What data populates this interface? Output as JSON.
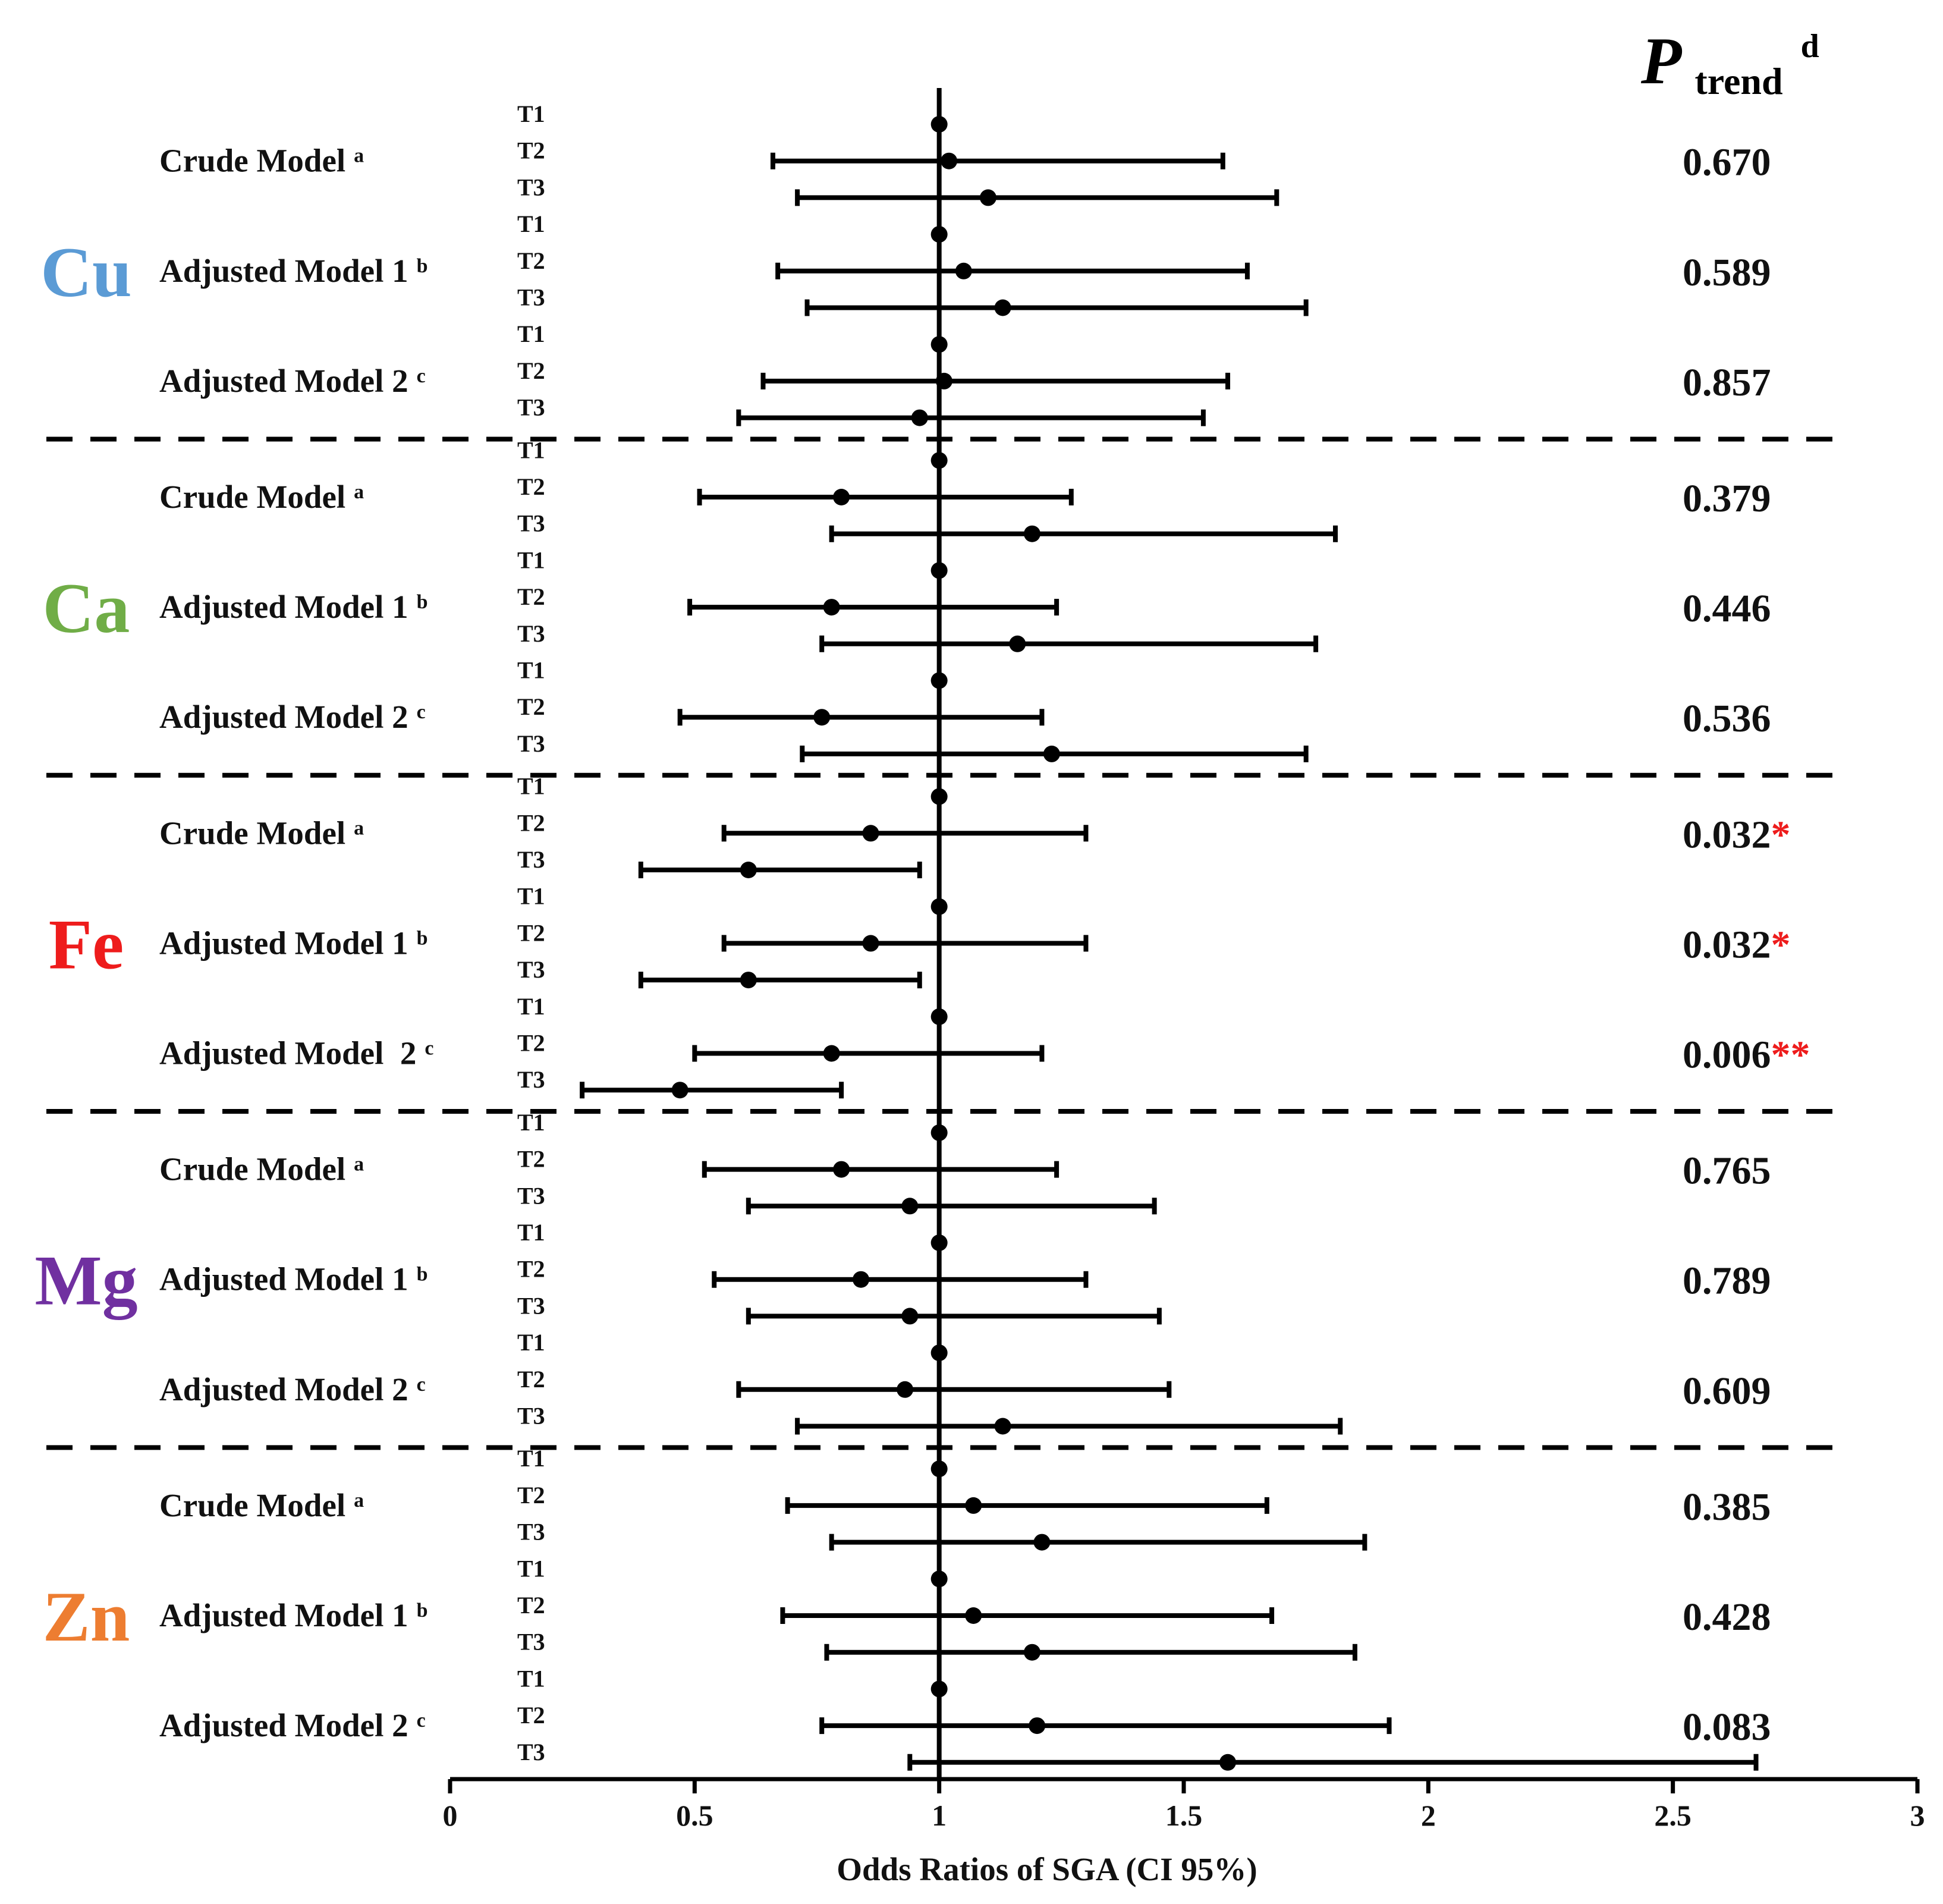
{
  "chart_data": {
    "type": "forest",
    "xlabel": "Odds Ratios of SGA (CI 95%)",
    "xlim": [
      0,
      3
    ],
    "xticks": [
      "0",
      "0.5",
      "1",
      "1.5",
      "2",
      "2.5",
      "3"
    ],
    "reference_line": 1,
    "ptrend_title": {
      "symbol": "P",
      "subscript": "trend",
      "superscript": "d"
    },
    "groups": [
      {
        "element": "Cu",
        "color": "#5b9bd5",
        "models": [
          {
            "label": "Crude Model",
            "sup": "a",
            "ptrend": "0.670",
            "stars": "",
            "tertiles": [
              {
                "name": "T1",
                "or": 1.0,
                "lo": null,
                "hi": null
              },
              {
                "name": "T2",
                "or": 1.02,
                "lo": 0.66,
                "hi": 1.58
              },
              {
                "name": "T3",
                "or": 1.1,
                "lo": 0.71,
                "hi": 1.69
              }
            ]
          },
          {
            "label": "Adjusted Model 1",
            "sup": "b",
            "ptrend": "0.589",
            "stars": "",
            "tertiles": [
              {
                "name": "T1",
                "or": 1.0,
                "lo": null,
                "hi": null
              },
              {
                "name": "T2",
                "or": 1.05,
                "lo": 0.67,
                "hi": 1.63
              },
              {
                "name": "T3",
                "or": 1.13,
                "lo": 0.73,
                "hi": 1.75
              }
            ]
          },
          {
            "label": "Adjusted Model 2",
            "sup": "c",
            "ptrend": "0.857",
            "stars": "",
            "tertiles": [
              {
                "name": "T1",
                "or": 1.0,
                "lo": null,
                "hi": null
              },
              {
                "name": "T2",
                "or": 1.01,
                "lo": 0.64,
                "hi": 1.59
              },
              {
                "name": "T3",
                "or": 0.96,
                "lo": 0.59,
                "hi": 1.54
              }
            ]
          }
        ]
      },
      {
        "element": "Ca",
        "color": "#70ad47",
        "models": [
          {
            "label": "Crude Model",
            "sup": "a",
            "ptrend": "0.379",
            "stars": "",
            "tertiles": [
              {
                "name": "T1",
                "or": 1.0,
                "lo": null,
                "hi": null
              },
              {
                "name": "T2",
                "or": 0.8,
                "lo": 0.51,
                "hi": 1.27
              },
              {
                "name": "T3",
                "or": 1.19,
                "lo": 0.78,
                "hi": 1.81
              }
            ]
          },
          {
            "label": "Adjusted Model 1",
            "sup": "b",
            "ptrend": "0.446",
            "stars": "",
            "tertiles": [
              {
                "name": "T1",
                "or": 1.0,
                "lo": null,
                "hi": null
              },
              {
                "name": "T2",
                "or": 0.78,
                "lo": 0.49,
                "hi": 1.24
              },
              {
                "name": "T3",
                "or": 1.16,
                "lo": 0.76,
                "hi": 1.77
              }
            ]
          },
          {
            "label": "Adjusted Model 2",
            "sup": "c",
            "ptrend": "0.536",
            "stars": "",
            "tertiles": [
              {
                "name": "T1",
                "or": 1.0,
                "lo": null,
                "hi": null
              },
              {
                "name": "T2",
                "or": 0.76,
                "lo": 0.47,
                "hi": 1.21
              },
              {
                "name": "T3",
                "or": 1.23,
                "lo": 0.72,
                "hi": 1.75
              }
            ]
          }
        ]
      },
      {
        "element": "Fe",
        "color": "#ee1c1c",
        "models": [
          {
            "label": "Crude Model",
            "sup": "a",
            "ptrend": "0.032",
            "stars": "*",
            "tertiles": [
              {
                "name": "T1",
                "or": 1.0,
                "lo": null,
                "hi": null
              },
              {
                "name": "T2",
                "or": 0.86,
                "lo": 0.56,
                "hi": 1.3
              },
              {
                "name": "T3",
                "or": 0.61,
                "lo": 0.39,
                "hi": 0.96
              }
            ]
          },
          {
            "label": "Adjusted Model 1",
            "sup": "b",
            "ptrend": "0.032",
            "stars": "*",
            "tertiles": [
              {
                "name": "T1",
                "or": 1.0,
                "lo": null,
                "hi": null
              },
              {
                "name": "T2",
                "or": 0.86,
                "lo": 0.56,
                "hi": 1.3
              },
              {
                "name": "T3",
                "or": 0.61,
                "lo": 0.39,
                "hi": 0.96
              }
            ]
          },
          {
            "label": "Adjusted Model  2",
            "sup": "c",
            "ptrend": "0.006",
            "stars": "**",
            "tertiles": [
              {
                "name": "T1",
                "or": 1.0,
                "lo": null,
                "hi": null
              },
              {
                "name": "T2",
                "or": 0.78,
                "lo": 0.5,
                "hi": 1.21
              },
              {
                "name": "T3",
                "or": 0.47,
                "lo": 0.27,
                "hi": 0.8
              }
            ]
          }
        ]
      },
      {
        "element": "Mg",
        "color": "#7030a0",
        "models": [
          {
            "label": "Crude Model",
            "sup": "a",
            "ptrend": "0.765",
            "stars": "",
            "tertiles": [
              {
                "name": "T1",
                "or": 1.0,
                "lo": null,
                "hi": null
              },
              {
                "name": "T2",
                "or": 0.8,
                "lo": 0.52,
                "hi": 1.24
              },
              {
                "name": "T3",
                "or": 0.94,
                "lo": 0.61,
                "hi": 1.44
              }
            ]
          },
          {
            "label": "Adjusted Model 1",
            "sup": "b",
            "ptrend": "0.789",
            "stars": "",
            "tertiles": [
              {
                "name": "T1",
                "or": 1.0,
                "lo": null,
                "hi": null
              },
              {
                "name": "T2",
                "or": 0.84,
                "lo": 0.54,
                "hi": 1.3
              },
              {
                "name": "T3",
                "or": 0.94,
                "lo": 0.61,
                "hi": 1.45
              }
            ]
          },
          {
            "label": "Adjusted Model 2",
            "sup": "c",
            "ptrend": "0.609",
            "stars": "",
            "tertiles": [
              {
                "name": "T1",
                "or": 1.0,
                "lo": null,
                "hi": null
              },
              {
                "name": "T2",
                "or": 0.93,
                "lo": 0.59,
                "hi": 1.47
              },
              {
                "name": "T3",
                "or": 1.13,
                "lo": 0.71,
                "hi": 1.82
              }
            ]
          }
        ]
      },
      {
        "element": "Zn",
        "color": "#ed7d31",
        "models": [
          {
            "label": "Crude Model",
            "sup": "a",
            "ptrend": "0.385",
            "stars": "",
            "tertiles": [
              {
                "name": "T1",
                "or": 1.0,
                "lo": null,
                "hi": null
              },
              {
                "name": "T2",
                "or": 1.07,
                "lo": 0.69,
                "hi": 1.67
              },
              {
                "name": "T3",
                "or": 1.21,
                "lo": 0.78,
                "hi": 1.87
              }
            ]
          },
          {
            "label": "Adjusted Model 1",
            "sup": "b",
            "ptrend": "0.428",
            "stars": "",
            "tertiles": [
              {
                "name": "T1",
                "or": 1.0,
                "lo": null,
                "hi": null
              },
              {
                "name": "T2",
                "or": 1.07,
                "lo": 0.68,
                "hi": 1.68
              },
              {
                "name": "T3",
                "or": 1.19,
                "lo": 0.77,
                "hi": 1.85
              }
            ]
          },
          {
            "label": "Adjusted Model 2",
            "sup": "c",
            "ptrend": "0.083",
            "stars": "",
            "tertiles": [
              {
                "name": "T1",
                "or": 1.0,
                "lo": null,
                "hi": null
              },
              {
                "name": "T2",
                "or": 1.2,
                "lo": 0.76,
                "hi": 1.92
              },
              {
                "name": "T3",
                "or": 1.59,
                "lo": 0.94,
                "hi": 2.67
              }
            ]
          }
        ]
      }
    ]
  }
}
